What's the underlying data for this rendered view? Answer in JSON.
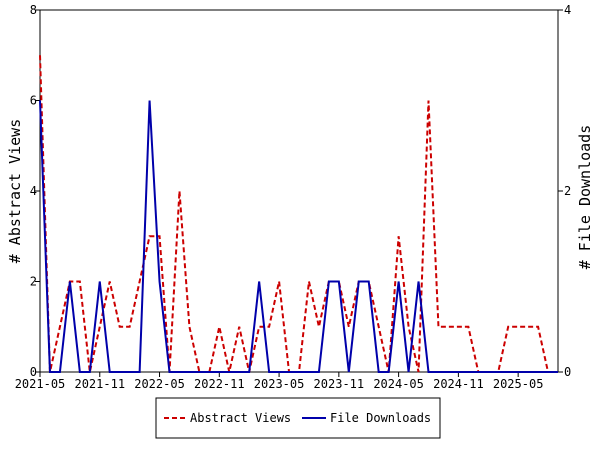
{
  "chart_data": {
    "type": "line",
    "title": "",
    "x": [
      "2021-05",
      "2021-06",
      "2021-07",
      "2021-08",
      "2021-09",
      "2021-10",
      "2021-11",
      "2021-12",
      "2022-01",
      "2022-02",
      "2022-03",
      "2022-04",
      "2022-05",
      "2022-06",
      "2022-07",
      "2022-08",
      "2022-09",
      "2022-10",
      "2022-11",
      "2022-12",
      "2023-01",
      "2023-02",
      "2023-03",
      "2023-04",
      "2023-05",
      "2023-06",
      "2023-07",
      "2023-08",
      "2023-09",
      "2023-10",
      "2023-11",
      "2023-12",
      "2024-01",
      "2024-02",
      "2024-03",
      "2024-04",
      "2024-05",
      "2024-06",
      "2024-07",
      "2024-08",
      "2024-09",
      "2024-10",
      "2024-11",
      "2024-12",
      "2025-01",
      "2025-02",
      "2025-03",
      "2025-04",
      "2025-05",
      "2025-06",
      "2025-07",
      "2025-08",
      "2025-09"
    ],
    "x_ticks": [
      "2021-05",
      "2021-11",
      "2022-05",
      "2022-11",
      "2023-05",
      "2023-11",
      "2024-05",
      "2024-11",
      "2025-05"
    ],
    "series": [
      {
        "name": "Abstract Views",
        "axis": "left",
        "color": "#cc0000",
        "dash": true,
        "values": [
          7,
          0,
          1,
          2,
          2,
          0,
          1,
          2,
          1,
          1,
          2,
          3,
          3,
          0,
          4,
          1,
          0,
          0,
          1,
          0,
          1,
          0,
          1,
          1,
          2,
          0,
          0,
          2,
          1,
          2,
          2,
          1,
          2,
          2,
          1,
          0,
          3,
          1,
          0,
          6,
          1,
          1,
          1,
          1,
          0,
          0,
          0,
          1,
          1,
          1,
          1,
          0,
          0
        ]
      },
      {
        "name": "File Downloads",
        "axis": "right",
        "color": "#0000aa",
        "dash": false,
        "values": [
          3,
          0,
          0,
          1,
          0,
          0,
          1,
          0,
          0,
          0,
          0,
          3,
          1,
          0,
          0,
          0,
          0,
          0,
          0,
          0,
          0,
          0,
          1,
          0,
          0,
          0,
          0,
          0,
          0,
          1,
          1,
          0,
          1,
          1,
          0,
          0,
          1,
          0,
          1,
          0,
          0,
          0,
          0,
          0,
          0,
          0,
          0,
          0,
          0,
          0,
          0,
          0,
          0
        ]
      }
    ],
    "y_left": {
      "label": "# Abstract Views",
      "ylim": [
        0,
        8
      ],
      "ticks": [
        "0",
        "2",
        "4",
        "6",
        "8"
      ]
    },
    "y_right": {
      "label": "# File Downloads",
      "ylim": [
        0,
        4
      ],
      "ticks": [
        "0",
        "2",
        "4"
      ]
    },
    "grid": false,
    "legend_position": "bottom-center"
  }
}
